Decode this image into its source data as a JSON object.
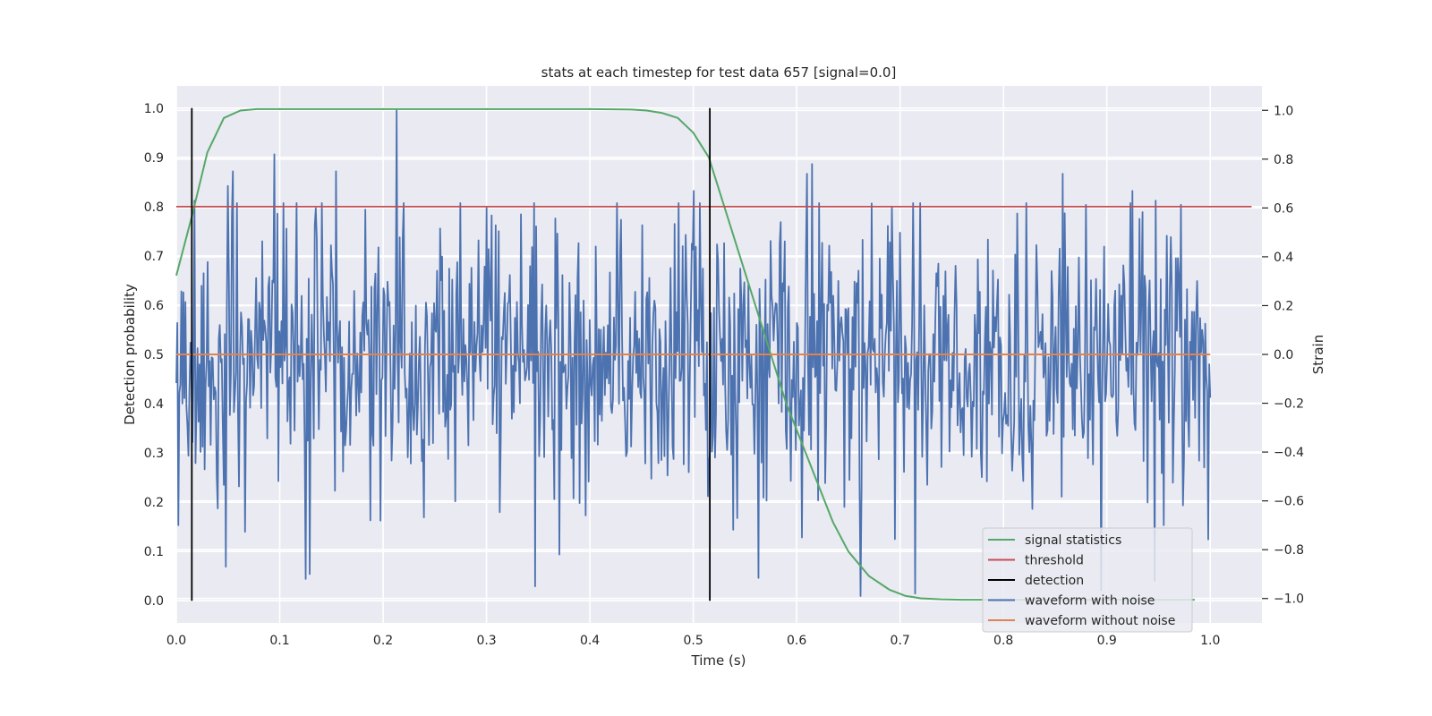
{
  "chart_data": {
    "type": "line",
    "title": "stats at each timestep for test data 657 [signal=0.0]",
    "xlabel": "Time (s)",
    "ylabel": "Detection probability",
    "y2label": "Strain",
    "xlim": [
      0.0,
      1.05
    ],
    "ylim": [
      -0.045,
      1.045
    ],
    "y2lim": [
      -1.1,
      1.1
    ],
    "xticks": [
      "0.0",
      "0.1",
      "0.2",
      "0.3",
      "0.4",
      "0.5",
      "0.6",
      "0.7",
      "0.8",
      "0.9",
      "1.0"
    ],
    "yticks": [
      "0.0",
      "0.1",
      "0.2",
      "0.3",
      "0.4",
      "0.5",
      "0.6",
      "0.7",
      "0.8",
      "0.9",
      "1.0"
    ],
    "y2ticks": [
      "−1.0",
      "−0.8",
      "−0.6",
      "−0.4",
      "−0.2",
      "0.0",
      "0.2",
      "0.4",
      "0.6",
      "0.8",
      "1.0"
    ],
    "grid": true,
    "legend_position": "lower-right",
    "series": [
      {
        "name": "signal statistics",
        "color": "#55a868",
        "axis": "left",
        "x": [
          0.0,
          0.015,
          0.03,
          0.046,
          0.062,
          0.078,
          0.1,
          0.2,
          0.3,
          0.4,
          0.44,
          0.455,
          0.47,
          0.485,
          0.5,
          0.515,
          0.53,
          0.545,
          0.56,
          0.575,
          0.59,
          0.605,
          0.62,
          0.635,
          0.65,
          0.67,
          0.69,
          0.705,
          0.72,
          0.74,
          0.76,
          0.8,
          0.9,
          0.985
        ],
        "y": [
          0.66,
          0.78,
          0.91,
          0.98,
          0.995,
          0.998,
          0.998,
          0.998,
          0.998,
          0.998,
          0.997,
          0.995,
          0.99,
          0.98,
          0.95,
          0.9,
          0.8,
          0.7,
          0.6,
          0.5,
          0.4,
          0.32,
          0.24,
          0.16,
          0.1,
          0.05,
          0.022,
          0.01,
          0.005,
          0.003,
          0.002,
          0.002,
          0.002,
          0.002
        ]
      },
      {
        "name": "threshold",
        "color": "#c44e52",
        "axis": "left",
        "x": [
          0.0,
          1.04
        ],
        "y": [
          0.8,
          0.8
        ]
      },
      {
        "name": "detection",
        "color": "#000000",
        "axis": "left",
        "segments": [
          {
            "x": 0.015,
            "y": [
              0.0,
              1.0
            ]
          },
          {
            "x": 0.516,
            "y": [
              0.0,
              1.0
            ]
          }
        ]
      },
      {
        "name": "waveform with noise",
        "color": "#4c72b0",
        "axis": "right",
        "x_start": 0.0,
        "x_end": 1.0,
        "n_points": 1024,
        "amplitude": 0.28,
        "max": 1.0,
        "min": -0.99,
        "peaks": [
          {
            "x": 0.213,
            "y": 1.0
          },
          {
            "x": 0.095,
            "y": 0.82
          },
          {
            "x": 0.154,
            "y": 0.75
          },
          {
            "x": 0.05,
            "y": 0.69
          },
          {
            "x": 0.055,
            "y": 0.75
          },
          {
            "x": 0.61,
            "y": 0.74
          },
          {
            "x": 0.615,
            "y": 0.78
          },
          {
            "x": 0.925,
            "y": 0.67
          },
          {
            "x": 0.857,
            "y": 0.74
          },
          {
            "x": 0.947,
            "y": 0.63
          },
          {
            "x": 0.5,
            "y": 0.67
          },
          {
            "x": 0.3,
            "y": 0.6
          },
          {
            "x": 0.018,
            "y": 0.63
          },
          {
            "x": 0.715,
            "y": -0.98
          },
          {
            "x": 0.347,
            "y": -0.95
          },
          {
            "x": 0.125,
            "y": -0.92
          },
          {
            "x": 0.129,
            "y": -0.9
          },
          {
            "x": 0.048,
            "y": -0.87
          },
          {
            "x": 0.37,
            "y": -0.82
          },
          {
            "x": 0.605,
            "y": -0.75
          },
          {
            "x": 0.002,
            "y": -0.7
          },
          {
            "x": 0.188,
            "y": -0.68
          },
          {
            "x": 0.955,
            "y": -0.7
          }
        ]
      },
      {
        "name": "waveform without noise",
        "color": "#dd8452",
        "axis": "right",
        "x": [
          0.0,
          1.0
        ],
        "y": [
          0.0,
          0.0
        ]
      }
    ]
  }
}
